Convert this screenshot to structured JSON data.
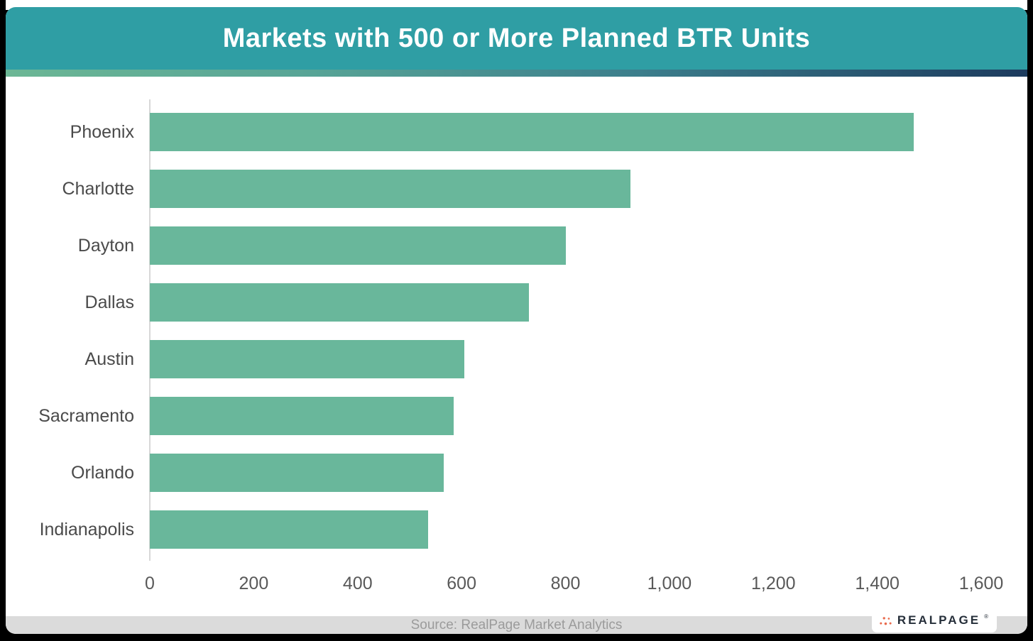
{
  "header": {
    "title": "Markets with 500 or More Planned BTR Units"
  },
  "chart_data": {
    "type": "bar",
    "orientation": "horizontal",
    "title": "Markets with 500 or More Planned BTR Units",
    "categories": [
      "Phoenix",
      "Charlotte",
      "Dayton",
      "Dallas",
      "Austin",
      "Sacramento",
      "Orlando",
      "Indianapolis"
    ],
    "values": [
      1470,
      925,
      800,
      730,
      605,
      585,
      565,
      535
    ],
    "xlabel": "",
    "ylabel": "",
    "xlim": [
      0,
      1600
    ],
    "x_ticks": [
      0,
      200,
      400,
      600,
      800,
      1000,
      1200,
      1400,
      1600
    ],
    "x_tick_labels": [
      "0",
      "200",
      "400",
      "600",
      "800",
      "1,000",
      "1,200",
      "1,400",
      "1,600"
    ],
    "grid": false,
    "legend": false,
    "bar_color": "#69B79B"
  },
  "footer": {
    "source_text": "Source: RealPage Market Analytics"
  },
  "logo": {
    "brand": "REALPAGE",
    "mark": "®"
  },
  "colors": {
    "header_bg": "#2F9EA4",
    "bar_color": "#69B79B",
    "gradient_start": "#6CB795",
    "gradient_end": "#1D3B5E",
    "footer_bg": "#DBDBDB",
    "footer_text": "#9B9B9B",
    "logo_dot": "#E96A4C",
    "label_color": "#4A4A4A"
  }
}
